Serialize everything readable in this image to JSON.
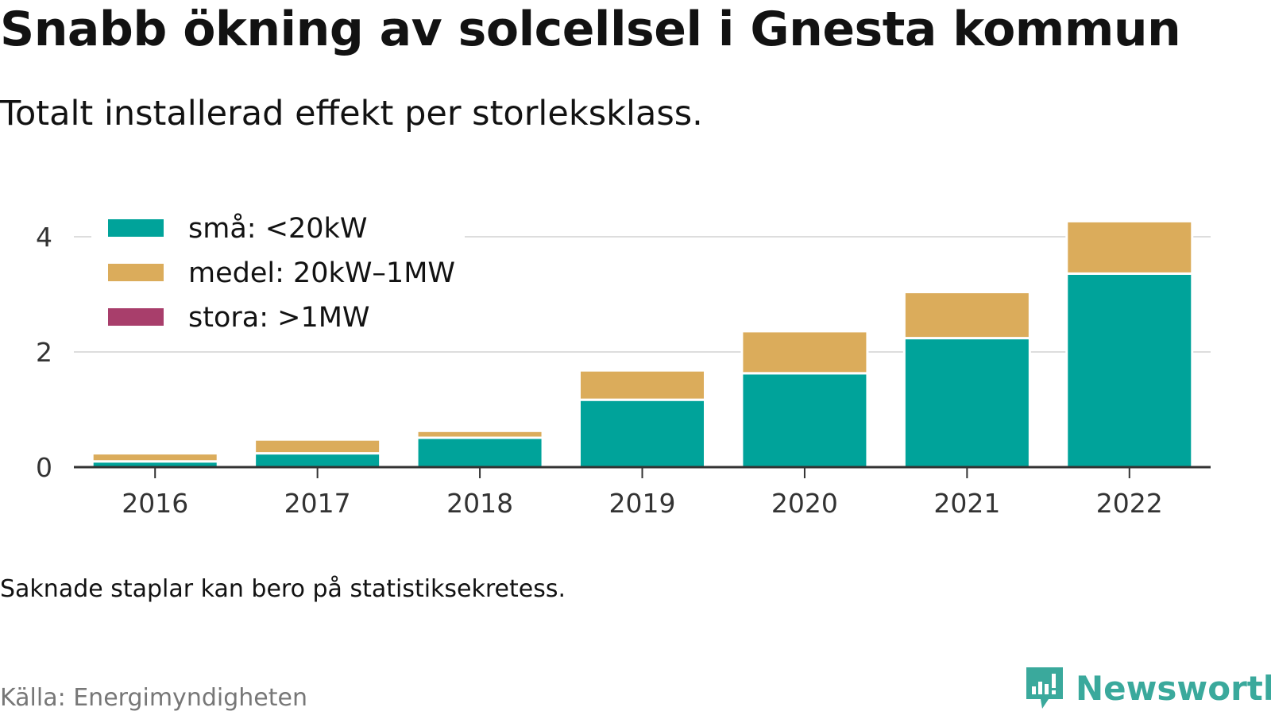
{
  "title": "Snabb ökning av solcellsel i Gnesta kommun",
  "subtitle": "Totalt installerad effekt per storleksklass.",
  "note": "Saknade staplar kan bero på statistiksekretess.",
  "source": "Källa: Energimyndigheten",
  "brand": {
    "name": "Newsworthy",
    "icon": "bar-chart-speech-bubble-icon",
    "color": "#3aa99c"
  },
  "chart_data": {
    "type": "bar",
    "stacked": true,
    "categories": [
      "2016",
      "2017",
      "2018",
      "2019",
      "2020",
      "2021",
      "2022"
    ],
    "series": [
      {
        "name": "små: <20kW",
        "color": "#00a39a",
        "values": [
          0.1,
          0.24,
          0.51,
          1.17,
          1.63,
          2.24,
          3.36
        ]
      },
      {
        "name": "medel: 20kW–1MW",
        "color": "#dbac5b",
        "values": [
          0.14,
          0.24,
          0.12,
          0.51,
          0.73,
          0.8,
          0.91
        ]
      },
      {
        "name": "stora: >1MW",
        "color": "#a83e6b",
        "values": [
          0,
          0,
          0,
          0,
          0,
          0,
          0
        ]
      }
    ],
    "yticks": [
      0,
      2,
      4
    ],
    "ylim": [
      0,
      4.4
    ],
    "grid": true,
    "legend": "top-left",
    "xlabel": "",
    "ylabel": ""
  }
}
